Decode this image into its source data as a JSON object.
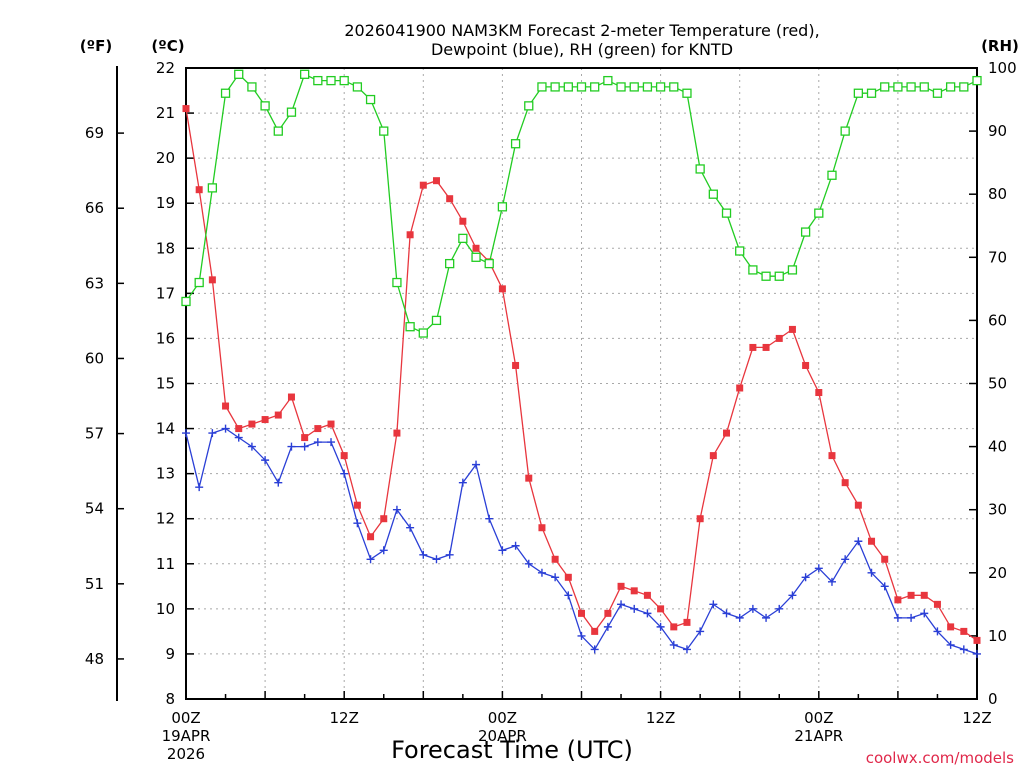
{
  "chart_data": {
    "type": "line",
    "title": "2026041900 NAM3KM Forecast 2-meter Temperature (red),",
    "subtitle": "Dewpoint (blue), RH (green) for KNTD",
    "xlabel": "Forecast Time (UTC)",
    "credit": "coolwx.com/models",
    "left_axis_f_label": "(ºF)",
    "left_axis_c_label": "(ºC)",
    "right_axis_label": "(RH)",
    "xlim_hours": [
      0,
      60
    ],
    "ylim_c": [
      8,
      22
    ],
    "ylim_rh": [
      0,
      100
    ],
    "c_ticks": [
      "8",
      "9",
      "10",
      "11",
      "12",
      "13",
      "14",
      "15",
      "16",
      "17",
      "18",
      "19",
      "20",
      "21",
      "22"
    ],
    "f_ticks": [
      "48",
      "51",
      "54",
      "57",
      "60",
      "63",
      "66",
      "69"
    ],
    "rh_ticks": [
      "0",
      "10",
      "20",
      "30",
      "40",
      "50",
      "60",
      "70",
      "80",
      "90",
      "100"
    ],
    "x_ticks": [
      {
        "hour": 0,
        "label": "00Z",
        "sub1": "19APR",
        "sub2": "2026"
      },
      {
        "hour": 12,
        "label": "12Z",
        "sub1": "",
        "sub2": ""
      },
      {
        "hour": 24,
        "label": "00Z",
        "sub1": "20APR",
        "sub2": ""
      },
      {
        "hour": 36,
        "label": "12Z",
        "sub1": "",
        "sub2": ""
      },
      {
        "hour": 48,
        "label": "00Z",
        "sub1": "21APR",
        "sub2": ""
      },
      {
        "hour": 60,
        "label": "12Z",
        "sub1": "",
        "sub2": ""
      }
    ],
    "series": [
      {
        "name": "2-meter Temperature (°C)",
        "color": "#e8363e",
        "marker": "filled-square",
        "axis": "c",
        "x": [
          0,
          1,
          2,
          3,
          4,
          5,
          6,
          7,
          8,
          9,
          10,
          11,
          12,
          13,
          14,
          15,
          16,
          17,
          18,
          19,
          20,
          21,
          22,
          23,
          24,
          25,
          26,
          27,
          28,
          29,
          30,
          31,
          32,
          33,
          34,
          35,
          36,
          37,
          38,
          39,
          40,
          41,
          42,
          43,
          44,
          45,
          46,
          47,
          48,
          49,
          50,
          51,
          52,
          53,
          54,
          55,
          56,
          57,
          58,
          59,
          60
        ],
        "values": [
          21.1,
          19.3,
          17.3,
          14.5,
          14.0,
          14.1,
          14.2,
          14.3,
          14.7,
          13.8,
          14.0,
          14.1,
          13.4,
          12.3,
          11.6,
          12.0,
          13.9,
          18.3,
          19.4,
          19.5,
          19.1,
          18.6,
          18.0,
          17.7,
          17.1,
          15.4,
          12.9,
          11.8,
          11.1,
          10.7,
          9.9,
          9.5,
          9.9,
          10.5,
          10.4,
          10.3,
          10.0,
          9.6,
          9.7,
          12.0,
          13.4,
          13.9,
          14.9,
          15.8,
          15.8,
          16.0,
          16.2,
          15.4,
          14.8,
          13.4,
          12.8,
          12.3,
          11.5,
          11.1,
          10.2,
          10.3,
          10.3,
          10.1,
          9.6,
          9.5,
          9.3
        ]
      },
      {
        "name": "Dewpoint (°C)",
        "color": "#2a3fd6",
        "marker": "plus",
        "axis": "c",
        "x": [
          0,
          1,
          2,
          3,
          4,
          5,
          6,
          7,
          8,
          9,
          10,
          11,
          12,
          13,
          14,
          15,
          16,
          17,
          18,
          19,
          20,
          21,
          22,
          23,
          24,
          25,
          26,
          27,
          28,
          29,
          30,
          31,
          32,
          33,
          34,
          35,
          36,
          37,
          38,
          39,
          40,
          41,
          42,
          43,
          44,
          45,
          46,
          47,
          48,
          49,
          50,
          51,
          52,
          53,
          54,
          55,
          56,
          57,
          58,
          59,
          60
        ],
        "values": [
          13.9,
          12.7,
          13.9,
          14.0,
          13.8,
          13.6,
          13.3,
          12.8,
          13.6,
          13.6,
          13.7,
          13.7,
          13.0,
          11.9,
          11.1,
          11.3,
          12.2,
          11.8,
          11.2,
          11.1,
          11.2,
          12.8,
          13.2,
          12.0,
          11.3,
          11.4,
          11.0,
          10.8,
          10.7,
          10.3,
          9.4,
          9.1,
          9.6,
          10.1,
          10.0,
          9.9,
          9.6,
          9.2,
          9.1,
          9.5,
          10.1,
          9.9,
          9.8,
          10.0,
          9.8,
          10.0,
          10.3,
          10.7,
          10.9,
          10.6,
          11.1,
          11.5,
          10.8,
          10.5,
          9.8,
          9.8,
          9.9,
          9.5,
          9.2,
          9.1,
          9.0
        ]
      },
      {
        "name": "Relative Humidity (%)",
        "color": "#22cc22",
        "marker": "open-square",
        "axis": "rh",
        "x": [
          0,
          1,
          2,
          3,
          4,
          5,
          6,
          7,
          8,
          9,
          10,
          11,
          12,
          13,
          14,
          15,
          16,
          17,
          18,
          19,
          20,
          21,
          22,
          23,
          24,
          25,
          26,
          27,
          28,
          29,
          30,
          31,
          32,
          33,
          34,
          35,
          36,
          37,
          38,
          39,
          40,
          41,
          42,
          43,
          44,
          45,
          46,
          47,
          48,
          49,
          50,
          51,
          52,
          53,
          54,
          55,
          56,
          57,
          58,
          59,
          60
        ],
        "values": [
          63,
          66,
          81,
          96,
          99,
          97,
          94,
          90,
          93,
          99,
          98,
          98,
          98,
          97,
          95,
          90,
          66,
          59,
          58,
          60,
          69,
          73,
          70,
          69,
          78,
          88,
          94,
          97,
          97,
          97,
          97,
          97,
          98,
          97,
          97,
          97,
          97,
          97,
          96,
          84,
          80,
          77,
          71,
          68,
          67,
          67,
          68,
          74,
          77,
          83,
          90,
          96,
          96,
          97,
          97,
          97,
          97,
          96,
          97,
          97,
          98
        ]
      }
    ]
  }
}
